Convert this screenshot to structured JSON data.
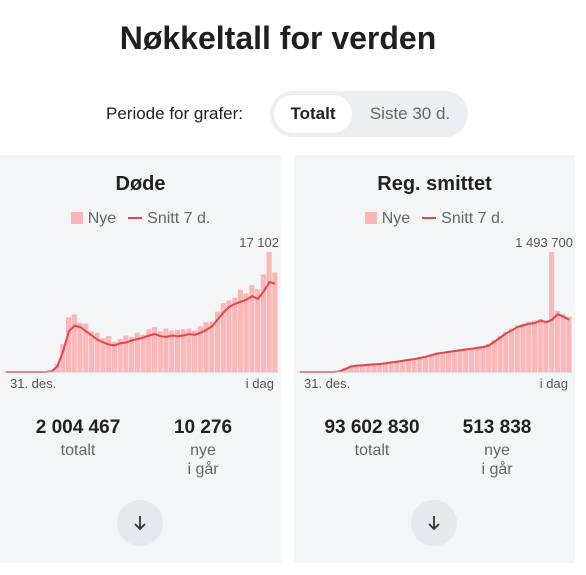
{
  "title": "Nøkkeltall for verden",
  "period": {
    "label": "Periode for grafer:",
    "options": [
      "Totalt",
      "Siste 30 d."
    ]
  },
  "cards": [
    {
      "title": "Døde",
      "legend": [
        "Nye",
        "Snitt 7 d."
      ],
      "max_label": "17 102",
      "x_start": "31. des.",
      "x_end": "i dag",
      "daily": [
        0,
        0,
        0,
        0,
        0,
        0,
        0,
        20,
        200,
        1200,
        4000,
        7800,
        8200,
        7000,
        6900,
        5800,
        5600,
        4800,
        5100,
        4300,
        4700,
        5200,
        5000,
        5600,
        5300,
        6100,
        6400,
        5800,
        6200,
        5900,
        6000,
        6100,
        6200,
        5900,
        6500,
        7100,
        7200,
        8600,
        9800,
        10200,
        10600,
        11700,
        11200,
        12400,
        11800,
        13900,
        17102,
        14200
      ],
      "average": [
        0,
        0,
        0,
        0,
        0,
        0,
        0,
        10,
        100,
        800,
        3000,
        5800,
        6600,
        6400,
        5800,
        5200,
        4600,
        4200,
        3900,
        3800,
        4100,
        4200,
        4500,
        4700,
        4900,
        5200,
        5400,
        5100,
        5000,
        5200,
        5100,
        5200,
        5400,
        5300,
        5600,
        6000,
        6500,
        7500,
        8500,
        9300,
        9700,
        10000,
        10300,
        10800,
        10400,
        11500,
        12800,
        12600
      ],
      "stats": [
        {
          "value": "2 004 467",
          "label": [
            "totalt"
          ]
        },
        {
          "value": "10 276",
          "label": [
            "nye",
            "i går"
          ]
        }
      ]
    },
    {
      "title": "Reg. smittet",
      "legend": [
        "Nye",
        "Snitt 7 d."
      ],
      "max_label": "1 493 700",
      "x_start": "31. des.",
      "x_end": "i dag",
      "daily": [
        0,
        0,
        0,
        0,
        0,
        0,
        0,
        15000,
        50000,
        80000,
        85000,
        90000,
        95000,
        100000,
        108000,
        115000,
        125000,
        138000,
        145000,
        158000,
        170000,
        185000,
        200000,
        220000,
        240000,
        250000,
        262000,
        270000,
        282000,
        295000,
        300000,
        315000,
        325000,
        350000,
        400000,
        450000,
        500000,
        540000,
        580000,
        600000,
        625000,
        640000,
        660000,
        640000,
        1493700,
        760000,
        720000,
        690000
      ],
      "average": [
        0,
        0,
        0,
        0,
        0,
        0,
        0,
        10000,
        40000,
        70000,
        80000,
        85000,
        90000,
        95000,
        100000,
        110000,
        120000,
        130000,
        140000,
        150000,
        160000,
        175000,
        190000,
        210000,
        230000,
        240000,
        250000,
        260000,
        270000,
        280000,
        290000,
        300000,
        310000,
        330000,
        380000,
        430000,
        480000,
        520000,
        560000,
        580000,
        600000,
        610000,
        640000,
        620000,
        650000,
        720000,
        690000,
        650000
      ],
      "stats": [
        {
          "value": "93 602 830",
          "label": [
            "totalt"
          ]
        },
        {
          "value": "513 838",
          "label": [
            "nye",
            "i går"
          ]
        }
      ]
    }
  ]
}
